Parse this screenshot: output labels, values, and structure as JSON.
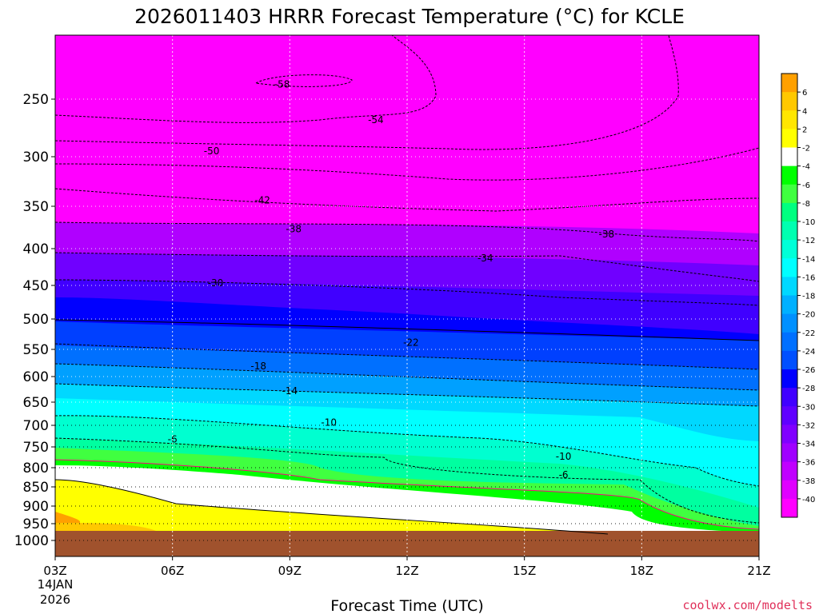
{
  "chart_data": {
    "type": "contour",
    "title": "2026011403 HRRR Forecast Temperature (°C) for KCLE",
    "xlabel": "Forecast Time (UTC)",
    "x_ticks": [
      "03Z",
      "06Z",
      "09Z",
      "12Z",
      "15Z",
      "18Z",
      "21Z"
    ],
    "x_date_label": [
      "14JAN",
      "2026"
    ],
    "y_ticks": [
      250,
      300,
      350,
      400,
      450,
      500,
      550,
      600,
      650,
      700,
      750,
      800,
      850,
      900,
      950,
      1000
    ],
    "y_range": [
      200,
      1025
    ],
    "x_range": [
      0,
      18
    ],
    "colorbar_labels": [
      6,
      4,
      2,
      -2,
      -4,
      -6,
      -8,
      -10,
      -12,
      -14,
      -16,
      -18,
      -20,
      -22,
      -24,
      -26,
      -28,
      -30,
      -32,
      -34,
      -36,
      -38,
      -40
    ],
    "colorbar_colors": [
      "#ffa000",
      "#ffc800",
      "#ffe600",
      "#ffff00",
      "#ffffff",
      "#00ff00",
      "#40ff40",
      "#00ff80",
      "#00ffb0",
      "#00ffd8",
      "#00ffff",
      "#00d8ff",
      "#00b0ff",
      "#0090ff",
      "#0070ff",
      "#0050ff",
      "#0000ff",
      "#4000ff",
      "#6000ff",
      "#8000ff",
      "#a000ff",
      "#c000ff",
      "#e000ff",
      "#ff00ff"
    ],
    "ground_color": "#a0522d",
    "contour_labels": [
      {
        "value": "-58",
        "t": 5.8,
        "p": 237
      },
      {
        "value": "-54",
        "t": 8.2,
        "p": 268
      },
      {
        "value": "-50",
        "t": 4.0,
        "p": 295
      },
      {
        "value": "-42",
        "t": 5.3,
        "p": 344
      },
      {
        "value": "-38",
        "t": 6.1,
        "p": 377
      },
      {
        "value": "-38",
        "t": 14.1,
        "p": 383
      },
      {
        "value": "-34",
        "t": 11.0,
        "p": 413
      },
      {
        "value": "-30",
        "t": 4.1,
        "p": 447
      },
      {
        "value": "-22",
        "t": 9.1,
        "p": 539
      },
      {
        "value": "-18",
        "t": 5.2,
        "p": 581
      },
      {
        "value": "-14",
        "t": 6.0,
        "p": 628
      },
      {
        "value": "-10",
        "t": 7.0,
        "p": 694
      },
      {
        "value": "-10",
        "t": 13.0,
        "p": 773
      },
      {
        "value": "-6",
        "t": 3.0,
        "p": 732
      },
      {
        "value": "-6",
        "t": 13.0,
        "p": 819
      }
    ]
  },
  "credit": "coolwx.com/modelts"
}
